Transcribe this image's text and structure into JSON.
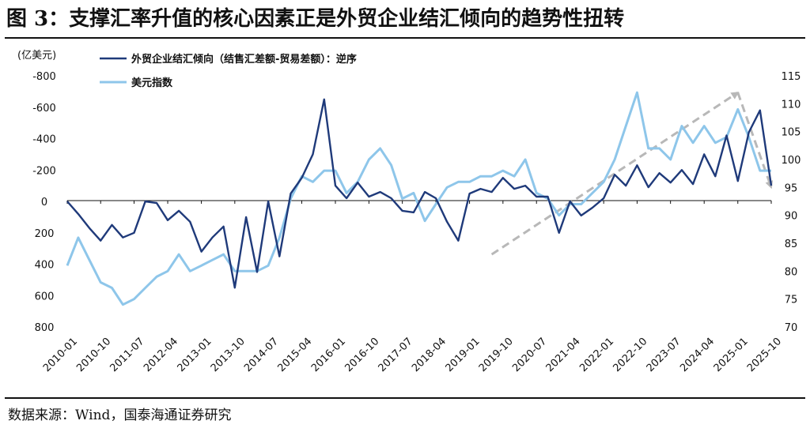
{
  "title": "图 3：支撑汇率升值的核心因素正是外贸企业结汇倾向的趋势性扭转",
  "source": "数据来源：Wind，国泰海通证券研究",
  "colors": {
    "series1": "#1f3a7a",
    "series2": "#8ec6ea",
    "trend_arrow": "#b8b8b8",
    "axis": "#111111"
  },
  "chart_data": {
    "type": "line",
    "title": "图 3：支撑汇率升值的核心因素正是外贸企业结汇倾向的趋势性扭转",
    "left_axis": {
      "unit_label": "(亿美元)",
      "ylim": [
        800,
        -800
      ],
      "ticks": [
        -800,
        -600,
        -400,
        -200,
        0,
        200,
        400,
        600,
        800
      ],
      "inverted": true
    },
    "right_axis": {
      "ylim": [
        70,
        115
      ],
      "ticks": [
        70,
        75,
        80,
        85,
        90,
        95,
        100,
        105,
        110,
        115
      ]
    },
    "x_ticks": [
      "2010-01",
      "2010-10",
      "2011-07",
      "2012-04",
      "2013-01",
      "2013-10",
      "2014-07",
      "2015-04",
      "2016-01",
      "2016-10",
      "2017-07",
      "2018-04",
      "2019-01",
      "2019-10",
      "2020-07",
      "2021-04",
      "2022-01",
      "2022-10",
      "2023-07",
      "2024-04",
      "2025-01",
      "2025-10"
    ],
    "grid": false,
    "legend_position": "top-left",
    "series": [
      {
        "name": "外贸企业结汇倾向（结售汇差额-贸易差额）：逆序",
        "axis": "left",
        "x": [
          "2010-01",
          "2010-04",
          "2010-07",
          "2010-10",
          "2011-01",
          "2011-04",
          "2011-07",
          "2011-10",
          "2012-01",
          "2012-04",
          "2012-07",
          "2012-10",
          "2013-01",
          "2013-04",
          "2013-07",
          "2013-10",
          "2014-01",
          "2014-04",
          "2014-07",
          "2014-10",
          "2015-01",
          "2015-04",
          "2015-07",
          "2015-10",
          "2016-01",
          "2016-04",
          "2016-07",
          "2016-10",
          "2017-01",
          "2017-04",
          "2017-07",
          "2017-10",
          "2018-01",
          "2018-04",
          "2018-07",
          "2018-10",
          "2019-01",
          "2019-04",
          "2019-07",
          "2019-10",
          "2020-01",
          "2020-04",
          "2020-07",
          "2020-10",
          "2021-01",
          "2021-04",
          "2021-07",
          "2021-10",
          "2022-01",
          "2022-04",
          "2022-07",
          "2022-10",
          "2023-01",
          "2023-04",
          "2023-07",
          "2023-10",
          "2024-01",
          "2024-04",
          "2024-07",
          "2024-10",
          "2025-01",
          "2025-04",
          "2025-07",
          "2025-10"
        ],
        "values": [
          0,
          80,
          170,
          250,
          150,
          230,
          200,
          0,
          10,
          120,
          60,
          130,
          320,
          230,
          160,
          550,
          100,
          450,
          0,
          350,
          -50,
          -150,
          -300,
          -650,
          -100,
          -20,
          -120,
          -30,
          -60,
          -20,
          60,
          70,
          -60,
          -20,
          130,
          250,
          -50,
          -80,
          -60,
          -150,
          -80,
          -100,
          -30,
          -30,
          200,
          0,
          90,
          40,
          -20,
          -170,
          -100,
          -230,
          -90,
          -180,
          -120,
          -200,
          -110,
          -300,
          -160,
          -420,
          -130,
          -440,
          -580,
          -100
        ]
      },
      {
        "name": "美元指数",
        "axis": "right",
        "x": [
          "2010-01",
          "2010-04",
          "2010-07",
          "2010-10",
          "2011-01",
          "2011-04",
          "2011-07",
          "2011-10",
          "2012-01",
          "2012-04",
          "2012-07",
          "2012-10",
          "2013-01",
          "2013-04",
          "2013-07",
          "2013-10",
          "2014-01",
          "2014-04",
          "2014-07",
          "2014-10",
          "2015-01",
          "2015-04",
          "2015-07",
          "2015-10",
          "2016-01",
          "2016-04",
          "2016-07",
          "2016-10",
          "2017-01",
          "2017-04",
          "2017-07",
          "2017-10",
          "2018-01",
          "2018-04",
          "2018-07",
          "2018-10",
          "2019-01",
          "2019-04",
          "2019-07",
          "2019-10",
          "2020-01",
          "2020-04",
          "2020-07",
          "2020-10",
          "2021-01",
          "2021-04",
          "2021-07",
          "2021-10",
          "2022-01",
          "2022-04",
          "2022-07",
          "2022-10",
          "2023-01",
          "2023-04",
          "2023-07",
          "2023-10",
          "2024-01",
          "2024-04",
          "2024-07",
          "2024-10",
          "2025-01",
          "2025-04",
          "2025-07",
          "2025-10"
        ],
        "values": [
          81,
          86,
          82,
          78,
          77,
          74,
          75,
          77,
          79,
          80,
          83,
          80,
          81,
          82,
          83,
          80,
          80,
          80,
          81,
          86,
          93,
          97,
          96,
          98,
          98,
          94,
          96,
          100,
          102,
          99,
          93,
          94,
          89,
          92,
          95,
          96,
          96,
          97,
          97,
          98,
          97,
          100,
          94,
          93,
          90,
          92,
          92,
          94,
          96,
          100,
          106,
          112,
          102,
          102,
          100,
          106,
          103,
          106,
          103,
          104,
          109,
          104,
          98,
          98
        ]
      }
    ],
    "annotations": [
      {
        "type": "trend-arrow",
        "from": {
          "x": "2019-07",
          "y_right": 83
        },
        "to": {
          "x": "2025-01",
          "y_right": 112
        }
      },
      {
        "type": "trend-arrow",
        "from": {
          "x": "2025-01",
          "y_right": 112
        },
        "to": {
          "x": "2025-10",
          "y_right": 95
        }
      }
    ]
  }
}
